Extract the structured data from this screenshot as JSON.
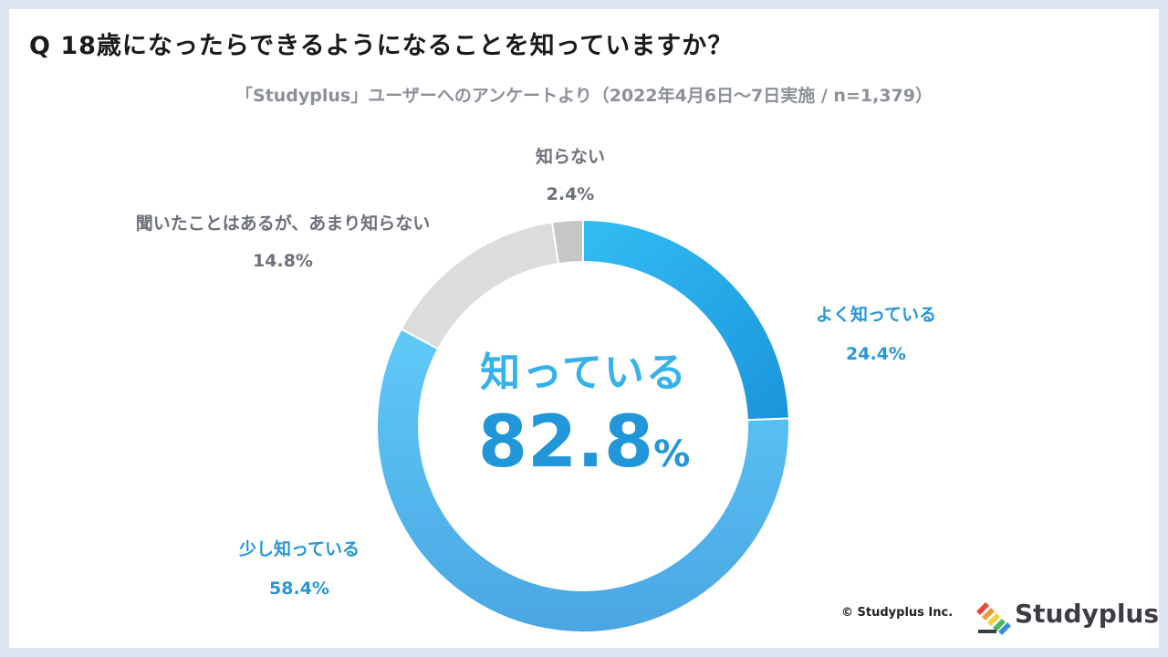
{
  "header": {
    "question": "Q 18歳になったらできるようになることを知っていますか？",
    "subtitle": "「Studyplus」ユーザーへのアンケートより（2022年4月6日〜7日実施 / n=1,379）"
  },
  "center": {
    "label": "知っている",
    "value": "82.8",
    "unit": "%"
  },
  "footer": {
    "copyright": "© Studyplus Inc.",
    "brand": "Studyplus"
  },
  "colors": {
    "knows_well": "#1ea0e4",
    "knows_little": "#55c2f4",
    "heard_not_know": "#dcdcdc",
    "does_not_know": "#c6c6c6",
    "accent": "#2196d8"
  },
  "chart_data": {
    "type": "pie",
    "title": "Q 18歳になったらできるようになることを知っていますか？",
    "subtitle": "「Studyplus」ユーザーへのアンケートより（2022年4月6日〜7日実施 / n=1,379）",
    "donut": true,
    "categories": [
      "よく知っている",
      "少し知っている",
      "聞いたことはあるが、あまり知らない",
      "知らない"
    ],
    "values": [
      24.4,
      58.4,
      14.8,
      2.4
    ],
    "value_labels": [
      "24.4%",
      "58.4%",
      "14.8%",
      "2.4%"
    ],
    "center_label": "知っている",
    "center_value": "82.8%",
    "legend": "none"
  }
}
